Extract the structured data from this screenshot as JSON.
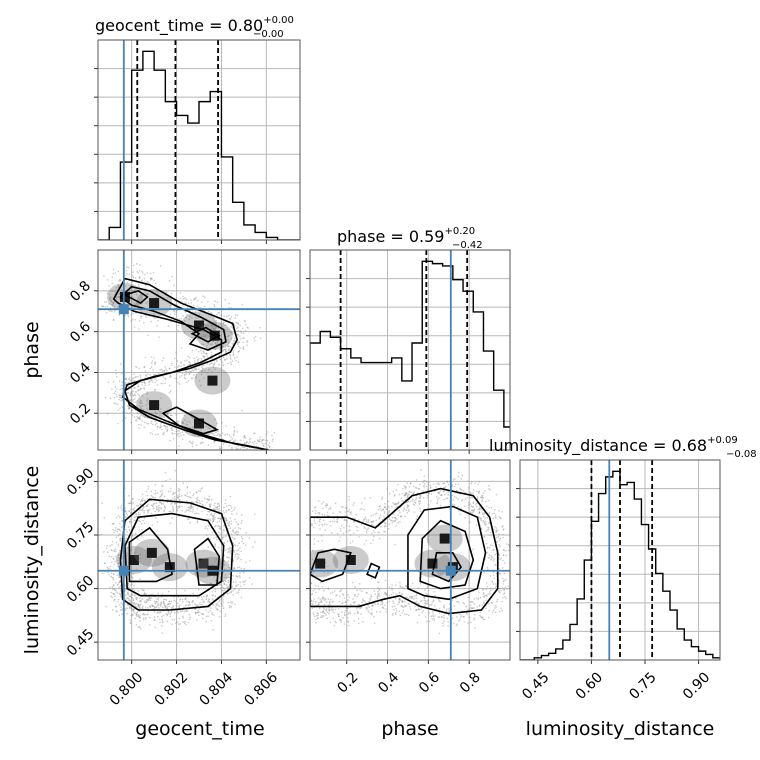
{
  "chart_data": {
    "type": "corner",
    "parameters": [
      {
        "name": "geocent_time",
        "label": "geocent_time",
        "title_prefix": "geocent_time = ",
        "median": "0.80",
        "plus": "+0.00",
        "minus": "−0.00",
        "range": [
          0.7985,
          0.8075
        ],
        "ticks": [
          0.8,
          0.802,
          0.804,
          0.806
        ],
        "tick_labels": [
          "0.800",
          "0.802",
          "0.804",
          "0.806"
        ],
        "quantiles": [
          0.80025,
          0.80195,
          0.80385
        ],
        "truth": 0.79965,
        "hist_bins": [
          0.7985,
          0.799,
          0.7995,
          0.8,
          0.8005,
          0.801,
          0.8015,
          0.802,
          0.8025,
          0.803,
          0.8035,
          0.804,
          0.8045,
          0.805,
          0.8055,
          0.806,
          0.8065,
          0.807,
          0.8075
        ],
        "hist_counts": [
          0,
          10,
          62,
          135,
          150,
          135,
          110,
          99,
          93,
          110,
          118,
          66,
          30,
          12,
          6,
          2,
          0,
          0
        ]
      },
      {
        "name": "phase",
        "label": "phase",
        "title_prefix": "phase = ",
        "median": "0.59",
        "plus": "+0.20",
        "minus": "−0.42",
        "range": [
          0.02,
          1.0
        ],
        "ticks": [
          0.2,
          0.4,
          0.6,
          0.8
        ],
        "tick_labels": [
          "0.2",
          "0.4",
          "0.6",
          "0.8"
        ],
        "quantiles": [
          0.17,
          0.59,
          0.79
        ],
        "truth": 0.71,
        "hist_bins": [
          0.02,
          0.07,
          0.12,
          0.17,
          0.22,
          0.27,
          0.32,
          0.37,
          0.42,
          0.47,
          0.52,
          0.57,
          0.62,
          0.67,
          0.72,
          0.77,
          0.82,
          0.87,
          0.92,
          0.97,
          1.02
        ],
        "hist_counts": [
          93,
          103,
          98,
          88,
          80,
          76,
          76,
          76,
          80,
          60,
          93,
          164,
          162,
          160,
          148,
          138,
          120,
          86,
          52,
          20
        ]
      },
      {
        "name": "luminosity_distance",
        "label": "luminosity_distance",
        "title_prefix": "luminosity_distance = ",
        "median": "0.68",
        "plus": "+0.09",
        "minus": "−0.08",
        "range": [
          0.4,
          0.96
        ],
        "ticks": [
          0.45,
          0.6,
          0.75,
          0.9
        ],
        "tick_labels": [
          "0.45",
          "0.60",
          "0.75",
          "0.90"
        ],
        "quantiles": [
          0.6,
          0.68,
          0.77
        ],
        "truth": 0.65,
        "hist_bins": [
          0.4,
          0.42,
          0.44,
          0.46,
          0.48,
          0.5,
          0.52,
          0.54,
          0.56,
          0.58,
          0.6,
          0.62,
          0.64,
          0.66,
          0.68,
          0.7,
          0.72,
          0.74,
          0.76,
          0.78,
          0.8,
          0.82,
          0.84,
          0.86,
          0.88,
          0.9,
          0.92,
          0.94,
          0.96
        ],
        "hist_counts": [
          0,
          0,
          2,
          4,
          6,
          10,
          18,
          32,
          55,
          90,
          125,
          150,
          165,
          170,
          158,
          160,
          145,
          122,
          100,
          78,
          62,
          45,
          28,
          18,
          12,
          8,
          5,
          2
        ]
      }
    ],
    "truth_color": "#4682b4",
    "contour_color": "#000000",
    "grid": true,
    "density": [
      {
        "x": "geocent_time",
        "y": "phase",
        "peaks": [
          {
            "x": 0.7997,
            "y": 0.77
          },
          {
            "x": 0.801,
            "y": 0.74
          },
          {
            "x": 0.803,
            "y": 0.63
          },
          {
            "x": 0.8037,
            "y": 0.58
          },
          {
            "x": 0.8036,
            "y": 0.36
          },
          {
            "x": 0.801,
            "y": 0.24
          },
          {
            "x": 0.803,
            "y": 0.15
          }
        ],
        "contours": [
          [
            [
              0.7992,
              0.76
            ],
            [
              0.7997,
              0.86
            ],
            [
              0.8008,
              0.83
            ],
            [
              0.8022,
              0.74
            ],
            [
              0.8036,
              0.68
            ],
            [
              0.8045,
              0.64
            ],
            [
              0.8047,
              0.56
            ],
            [
              0.8044,
              0.5
            ],
            [
              0.8036,
              0.46
            ],
            [
              0.8026,
              0.42
            ],
            [
              0.801,
              0.38
            ],
            [
              0.7998,
              0.34
            ],
            [
              0.7996,
              0.28
            ],
            [
              0.8003,
              0.22
            ],
            [
              0.8016,
              0.16
            ],
            [
              0.803,
              0.1
            ],
            [
              0.8046,
              0.05
            ],
            [
              0.8061,
              0.02
            ],
            [
              0.8052,
              0.04
            ],
            [
              0.8037,
              0.07
            ],
            [
              0.8023,
              0.12
            ],
            [
              0.8008,
              0.18
            ],
            [
              0.7999,
              0.24
            ],
            [
              0.7997,
              0.31
            ],
            [
              0.8004,
              0.36
            ],
            [
              0.8018,
              0.4
            ],
            [
              0.8031,
              0.45
            ],
            [
              0.804,
              0.5
            ],
            [
              0.804,
              0.56
            ],
            [
              0.8032,
              0.61
            ],
            [
              0.8016,
              0.66
            ],
            [
              0.8001,
              0.7
            ],
            [
              0.7994,
              0.74
            ]
          ],
          [
            [
              0.7995,
              0.77
            ],
            [
              0.8,
              0.82
            ],
            [
              0.8008,
              0.8
            ],
            [
              0.8019,
              0.73
            ],
            [
              0.8031,
              0.67
            ],
            [
              0.8041,
              0.61
            ],
            [
              0.8042,
              0.55
            ],
            [
              0.8034,
              0.51
            ],
            [
              0.8026,
              0.54
            ],
            [
              0.803,
              0.59
            ],
            [
              0.8022,
              0.65
            ],
            [
              0.801,
              0.7
            ],
            [
              0.8,
              0.73
            ]
          ],
          [
            [
              0.7997,
              0.78
            ],
            [
              0.8003,
              0.8
            ],
            [
              0.8007,
              0.77
            ],
            [
              0.8004,
              0.74
            ]
          ],
          [
            [
              0.8027,
              0.59
            ],
            [
              0.8033,
              0.62
            ],
            [
              0.8039,
              0.58
            ],
            [
              0.8034,
              0.55
            ]
          ],
          [
            [
              0.8014,
              0.2
            ],
            [
              0.802,
              0.23
            ],
            [
              0.803,
              0.17
            ],
            [
              0.8038,
              0.12
            ],
            [
              0.8032,
              0.1
            ],
            [
              0.8021,
              0.14
            ]
          ]
        ]
      },
      {
        "x": "geocent_time",
        "y": "luminosity_distance",
        "peaks": [
          {
            "x": 0.8001,
            "y": 0.68
          },
          {
            "x": 0.8009,
            "y": 0.7
          },
          {
            "x": 0.8017,
            "y": 0.66
          },
          {
            "x": 0.8032,
            "y": 0.67
          },
          {
            "x": 0.8036,
            "y": 0.65
          }
        ],
        "contours": [
          [
            [
              0.7996,
              0.57
            ],
            [
              0.7995,
              0.68
            ],
            [
              0.7997,
              0.79
            ],
            [
              0.8008,
              0.85
            ],
            [
              0.8026,
              0.84
            ],
            [
              0.804,
              0.81
            ],
            [
              0.8045,
              0.72
            ],
            [
              0.8044,
              0.6
            ],
            [
              0.8034,
              0.55
            ],
            [
              0.8017,
              0.54
            ],
            [
              0.8003,
              0.54
            ]
          ],
          [
            [
              0.7998,
              0.6
            ],
            [
              0.7997,
              0.72
            ],
            [
              0.8003,
              0.8
            ],
            [
              0.8018,
              0.81
            ],
            [
              0.8034,
              0.79
            ],
            [
              0.8041,
              0.72
            ],
            [
              0.804,
              0.62
            ],
            [
              0.803,
              0.58
            ],
            [
              0.8015,
              0.58
            ],
            [
              0.8004,
              0.58
            ]
          ],
          [
            [
              0.7999,
              0.62
            ],
            [
              0.7999,
              0.73
            ],
            [
              0.8008,
              0.77
            ],
            [
              0.8016,
              0.71
            ],
            [
              0.8018,
              0.64
            ],
            [
              0.8011,
              0.62
            ]
          ],
          [
            [
              0.803,
              0.61
            ],
            [
              0.8028,
              0.71
            ],
            [
              0.8034,
              0.74
            ],
            [
              0.8039,
              0.69
            ],
            [
              0.8038,
              0.61
            ]
          ]
        ]
      },
      {
        "x": "phase",
        "y": "luminosity_distance",
        "peaks": [
          {
            "x": 0.07,
            "y": 0.67
          },
          {
            "x": 0.22,
            "y": 0.68
          },
          {
            "x": 0.62,
            "y": 0.67
          },
          {
            "x": 0.72,
            "y": 0.66
          },
          {
            "x": 0.68,
            "y": 0.74
          }
        ],
        "contours": [
          [
            [
              0.02,
              0.55
            ],
            [
              0.02,
              0.8
            ],
            [
              0.2,
              0.8
            ],
            [
              0.34,
              0.77
            ],
            [
              0.44,
              0.82
            ],
            [
              0.52,
              0.86
            ],
            [
              0.66,
              0.88
            ],
            [
              0.82,
              0.86
            ],
            [
              0.9,
              0.8
            ],
            [
              0.94,
              0.7
            ],
            [
              0.94,
              0.6
            ],
            [
              0.86,
              0.54
            ],
            [
              0.7,
              0.53
            ],
            [
              0.56,
              0.55
            ],
            [
              0.46,
              0.58
            ],
            [
              0.38,
              0.57
            ],
            [
              0.26,
              0.55
            ],
            [
              0.12,
              0.55
            ]
          ],
          [
            [
              0.5,
              0.6
            ],
            [
              0.5,
              0.75
            ],
            [
              0.58,
              0.82
            ],
            [
              0.72,
              0.83
            ],
            [
              0.84,
              0.8
            ],
            [
              0.88,
              0.7
            ],
            [
              0.84,
              0.6
            ],
            [
              0.7,
              0.57
            ],
            [
              0.58,
              0.58
            ]
          ],
          [
            [
              0.56,
              0.62
            ],
            [
              0.57,
              0.74
            ],
            [
              0.66,
              0.79
            ],
            [
              0.78,
              0.76
            ],
            [
              0.82,
              0.68
            ],
            [
              0.78,
              0.61
            ],
            [
              0.66,
              0.6
            ]
          ],
          [
            [
              0.02,
              0.64
            ],
            [
              0.06,
              0.7
            ],
            [
              0.14,
              0.71
            ],
            [
              0.22,
              0.7
            ],
            [
              0.18,
              0.64
            ],
            [
              0.08,
              0.62
            ]
          ],
          [
            [
              0.3,
              0.64
            ],
            [
              0.32,
              0.67
            ],
            [
              0.36,
              0.66
            ],
            [
              0.34,
              0.63
            ]
          ],
          [
            [
              0.62,
              0.64
            ],
            [
              0.64,
              0.7
            ],
            [
              0.72,
              0.7
            ],
            [
              0.76,
              0.66
            ],
            [
              0.7,
              0.62
            ]
          ]
        ]
      }
    ]
  }
}
